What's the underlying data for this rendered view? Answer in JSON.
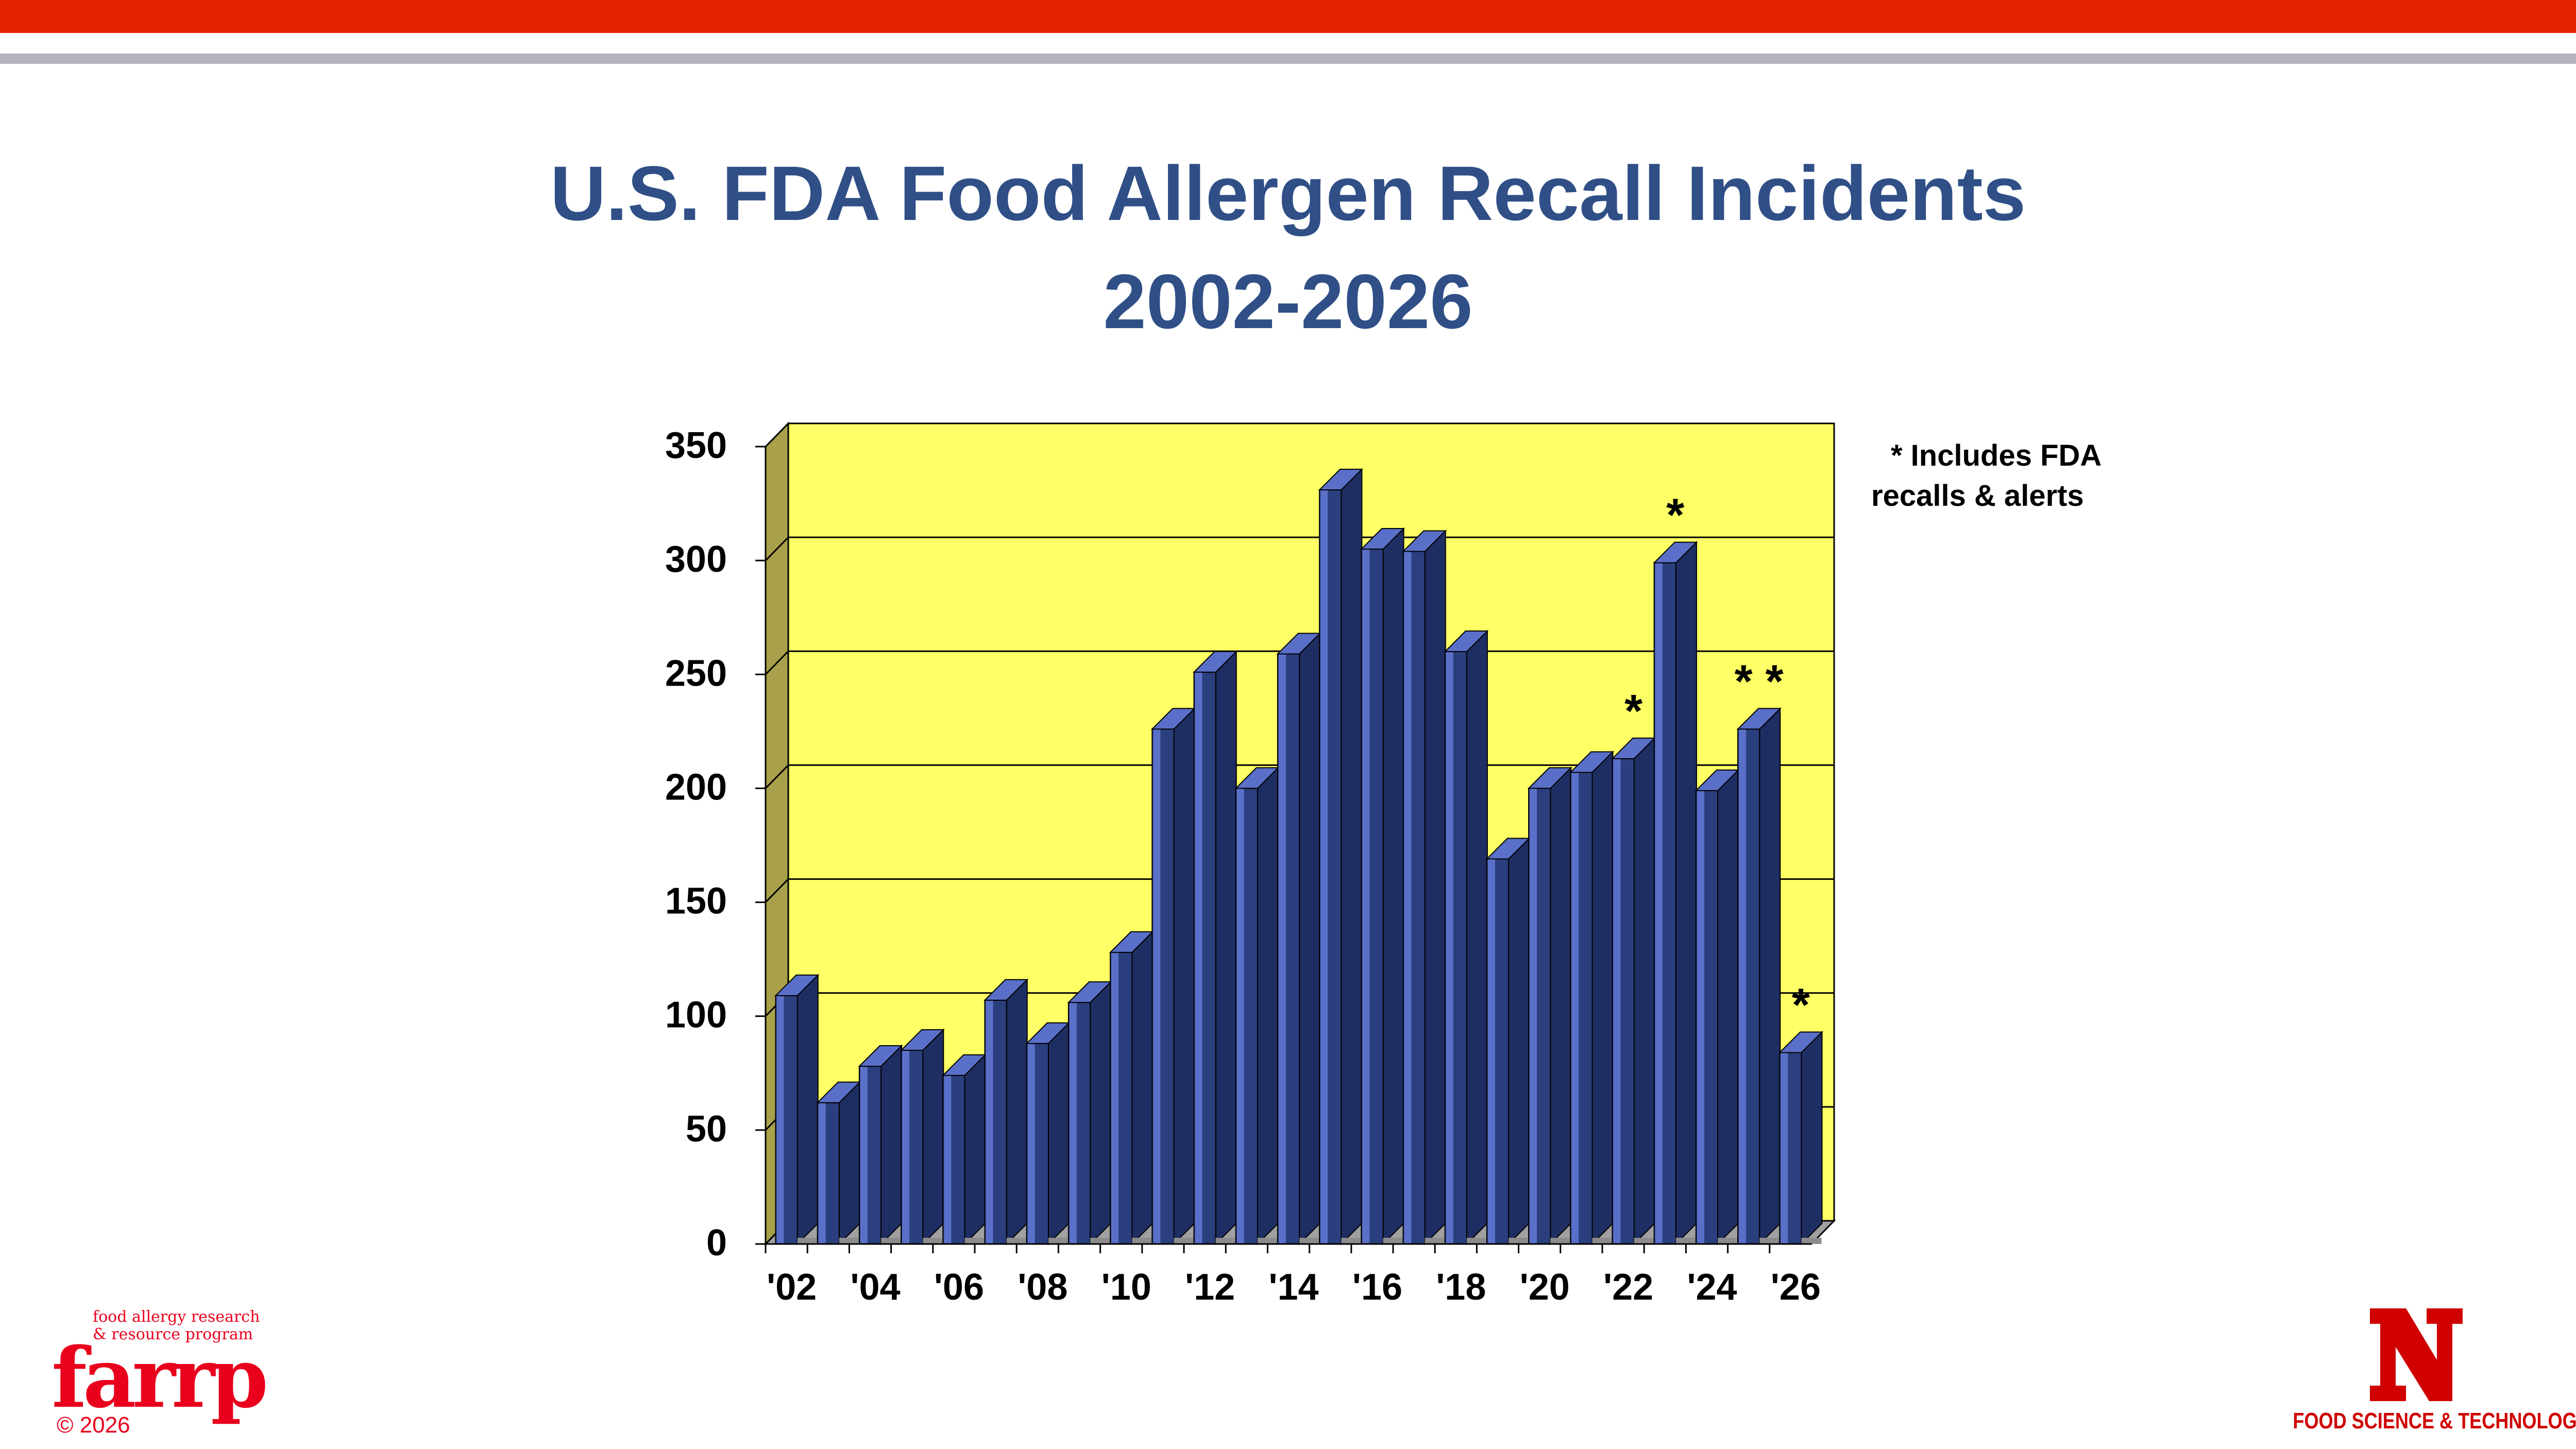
{
  "title": {
    "line1": "U.S. FDA Food Allergen Recall Incidents",
    "line2": "2002-2026"
  },
  "note": {
    "line1": "* Includes FDA",
    "line2": "recalls & alerts"
  },
  "colors": {
    "accent_red": "#e32200",
    "accent_gray": "#b3b3bf",
    "title": "#2f4f86",
    "plot_bg": "#ffff66",
    "bar_front": "#2b3f7f",
    "bar_top": "#5a70c8",
    "brand_red": "#d00000"
  },
  "footer": {
    "left_logo": "farrp",
    "left_tagline_1": "food allergy research",
    "left_tagline_2": "& resource program",
    "copyright": "© 2026",
    "right_logo_icon": "nebraska-n-icon",
    "right_label": "FOOD SCIENCE & TECHNOLOGY"
  },
  "chart_data": {
    "type": "bar",
    "title": "U.S. FDA Food Allergen Recall Incidents 2002-2026",
    "xlabel": "",
    "ylabel": "",
    "ylim": [
      0,
      350
    ],
    "yticks": [
      0,
      50,
      100,
      150,
      200,
      250,
      300,
      350
    ],
    "grid": true,
    "categories": [
      "'02",
      "'03",
      "'04",
      "'05",
      "'06",
      "'07",
      "'08",
      "'09",
      "'10",
      "'11",
      "'12",
      "'13",
      "'14",
      "'15",
      "'16",
      "'17",
      "'18",
      "'19",
      "'20",
      "'21",
      "'22",
      "'23",
      "'24",
      "'25",
      "'26"
    ],
    "category_labels_shown": [
      "'02",
      "",
      "'04",
      "",
      "'06",
      "",
      "'08",
      "",
      "'10",
      "",
      "'12",
      "",
      "'14",
      "",
      "'16",
      "",
      "'18",
      "",
      "'20",
      "",
      "'22",
      "",
      "'24",
      "",
      "'26"
    ],
    "values": [
      109,
      62,
      78,
      85,
      74,
      107,
      88,
      106,
      128,
      226,
      251,
      200,
      259,
      331,
      305,
      304,
      260,
      169,
      200,
      207,
      213,
      299,
      199,
      226,
      84
    ],
    "annotations": [
      "",
      "",
      "",
      "",
      "",
      "",
      "",
      "",
      "",
      "",
      "",
      "",
      "",
      "",
      "",
      "",
      "",
      "",
      "",
      "",
      "*",
      "*",
      "",
      "* *",
      "*"
    ]
  }
}
